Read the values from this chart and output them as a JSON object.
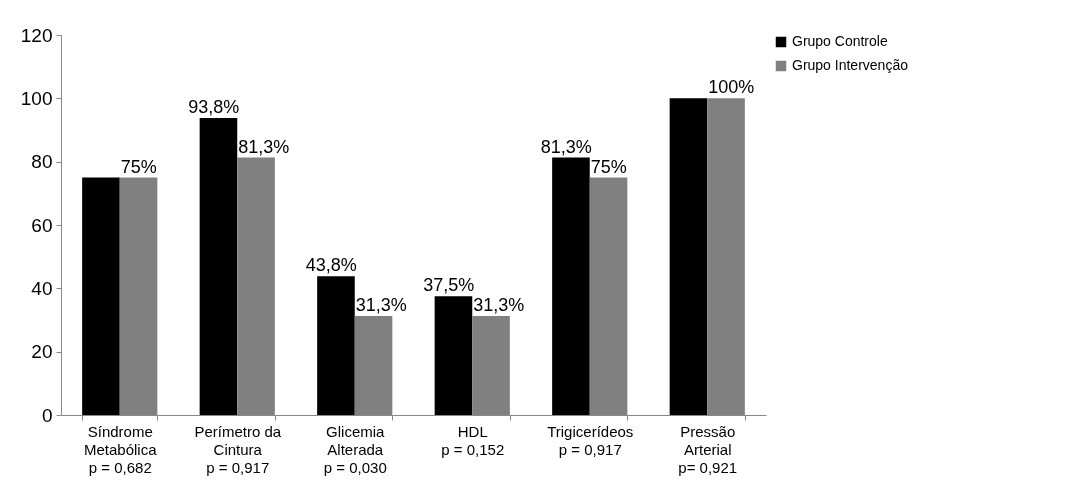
{
  "chart_data": {
    "type": "bar",
    "categories": [
      "Síndrome\nMetabólica",
      "Perímetro da\nCintura",
      "Glicemia\nAlterada",
      "HDL",
      "Trigicerídeos",
      "Pressão\nArterial"
    ],
    "series": [
      {
        "name": "Grupo Controle",
        "color": "#000000",
        "values": [
          75,
          93.8,
          43.8,
          37.5,
          81.3,
          100
        ],
        "value_labels": [
          null,
          "93,8%",
          "43,8%",
          "37,5%",
          "81,3%",
          null
        ]
      },
      {
        "name": "Grupo Intervenção",
        "color": "#808080",
        "values": [
          75,
          81.3,
          31.3,
          31.3,
          75,
          100
        ],
        "value_labels": [
          "75%",
          "81,3%",
          "31,3%",
          "31,3%",
          "75%",
          "100%"
        ]
      }
    ],
    "ylim": [
      0,
      120
    ],
    "yticks": [
      0,
      20,
      40,
      60,
      80,
      100,
      120
    ],
    "grid": false,
    "legend": "right",
    "annotations": [
      "p = 0,682",
      "p = 0,917",
      "p = 0,030",
      "p = 0,152",
      "p = 0,917",
      "p= 0,921"
    ]
  }
}
